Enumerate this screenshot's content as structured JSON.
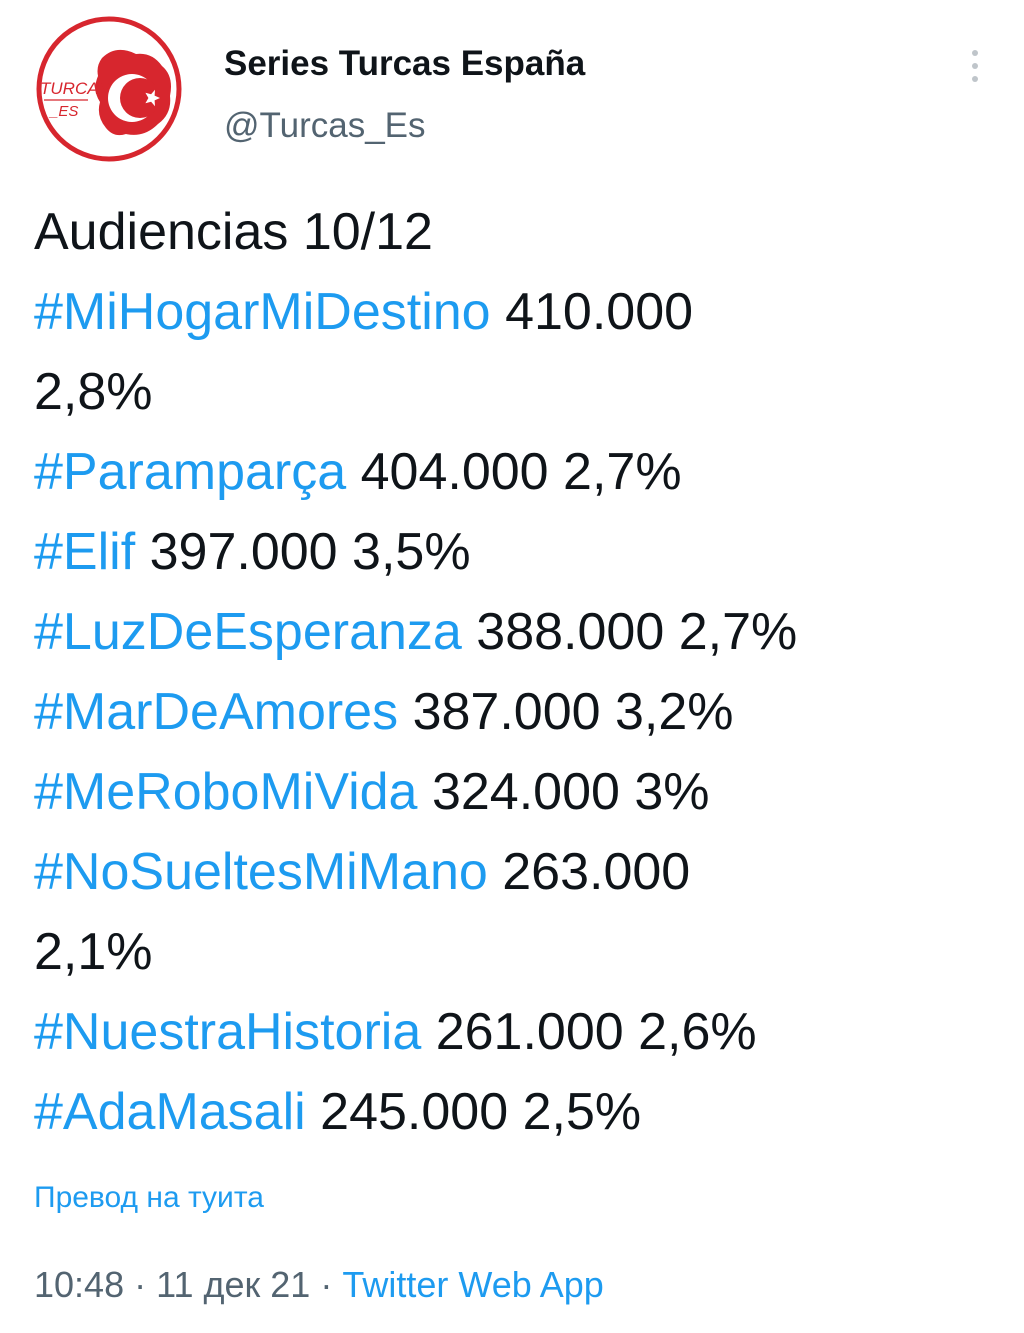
{
  "author": {
    "display_name": "Series Turcas España",
    "handle": "@Turcas_Es",
    "avatar_text": "TURCAS _ES"
  },
  "tweet": {
    "heading": "Audiencias 10/12",
    "entries": [
      {
        "hashtag": "#MiHogarMiDestino",
        "viewers": "410.000",
        "share": "2,8%"
      },
      {
        "hashtag": "#Paramparça",
        "viewers": "404.000",
        "share": "2,7%"
      },
      {
        "hashtag": "#Elif",
        "viewers": "397.000",
        "share": "3,5%"
      },
      {
        "hashtag": "#LuzDeEsperanza",
        "viewers": "388.000",
        "share": "2,7%"
      },
      {
        "hashtag": "#MarDeAmores",
        "viewers": "387.000",
        "share": "3,2%"
      },
      {
        "hashtag": "#MeRoboMiVida",
        "viewers": "324.000",
        "share": "3%"
      },
      {
        "hashtag": "#NoSueltesMiMano",
        "viewers": "263.000",
        "share": "2,1%"
      },
      {
        "hashtag": "#NuestraHistoria",
        "viewers": "261.000",
        "share": "2,6%"
      },
      {
        "hashtag": "#AdaMasali",
        "viewers": "245.000",
        "share": "2,5%"
      }
    ]
  },
  "translate_label": "Превод на туита",
  "meta": {
    "time": "10:48",
    "separator": "·",
    "date": "11 дек 21",
    "source": "Twitter Web App"
  },
  "colors": {
    "hashtag": "#1d9bf0",
    "text": "#0f1419",
    "muted": "#536471",
    "avatar_red": "#d7262e"
  },
  "icons": {
    "more": "vertical-dots-icon",
    "avatar": "turkish-flag-logo"
  }
}
